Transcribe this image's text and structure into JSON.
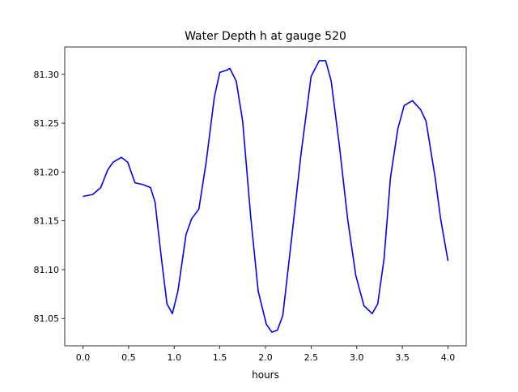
{
  "chart_data": {
    "type": "line",
    "title": "Water Depth h at gauge 520",
    "xlabel": "hours",
    "ylabel": "",
    "xlim": [
      -0.2,
      4.2
    ],
    "ylim": [
      81.022,
      81.328
    ],
    "xticks": [
      0.0,
      0.5,
      1.0,
      1.5,
      2.0,
      2.5,
      3.0,
      3.5,
      4.0
    ],
    "xtick_labels": [
      "0.0",
      "0.5",
      "1.0",
      "1.5",
      "2.0",
      "2.5",
      "3.0",
      "3.5",
      "4.0"
    ],
    "yticks": [
      81.05,
      81.1,
      81.15,
      81.2,
      81.25,
      81.3
    ],
    "ytick_labels": [
      "81.05",
      "81.10",
      "81.15",
      "81.20",
      "81.25",
      "81.30"
    ],
    "grid": false,
    "series": [
      {
        "name": "h",
        "color": "#0000ff",
        "x": [
          0.0,
          0.106,
          0.195,
          0.27,
          0.33,
          0.42,
          0.49,
          0.57,
          0.66,
          0.74,
          0.79,
          0.86,
          0.92,
          0.98,
          1.04,
          1.13,
          1.19,
          1.27,
          1.35,
          1.44,
          1.5,
          1.57,
          1.61,
          1.68,
          1.75,
          1.84,
          1.92,
          2.01,
          2.07,
          2.13,
          2.19,
          2.28,
          2.39,
          2.5,
          2.59,
          2.66,
          2.72,
          2.81,
          2.9,
          2.99,
          3.08,
          3.17,
          3.23,
          3.3,
          3.37,
          3.45,
          3.52,
          3.61,
          3.7,
          3.76,
          3.86,
          3.92,
          4.0
        ],
        "y": [
          81.175,
          81.177,
          81.184,
          81.202,
          81.21,
          81.215,
          81.21,
          81.189,
          81.187,
          81.184,
          81.169,
          81.111,
          81.065,
          81.055,
          81.078,
          81.136,
          81.152,
          81.162,
          81.21,
          81.277,
          81.302,
          81.304,
          81.306,
          81.293,
          81.252,
          81.152,
          81.078,
          81.044,
          81.036,
          81.038,
          81.053,
          81.127,
          81.219,
          81.298,
          81.314,
          81.314,
          81.293,
          81.227,
          81.152,
          81.094,
          81.063,
          81.055,
          81.065,
          81.111,
          81.194,
          81.244,
          81.268,
          81.273,
          81.264,
          81.252,
          81.194,
          81.152,
          81.109
        ]
      }
    ]
  }
}
